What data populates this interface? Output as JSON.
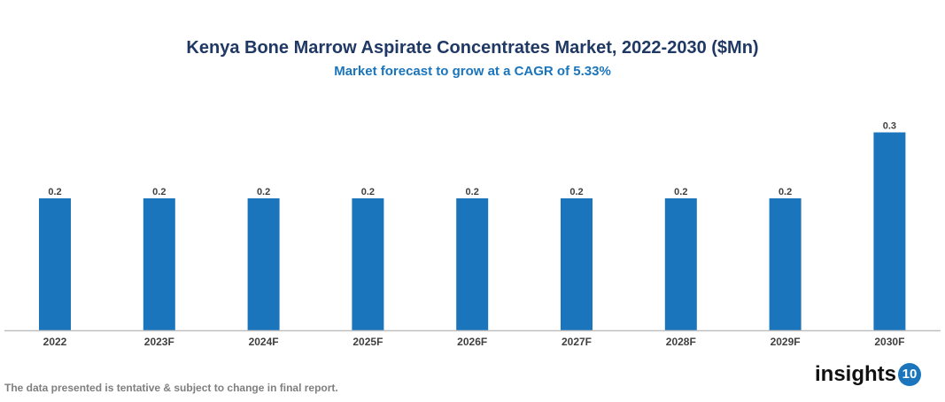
{
  "chart_data": {
    "type": "bar",
    "title": "Kenya Bone Marrow Aspirate Concentrates Market, 2022-2030 ($Mn)",
    "subtitle": "Market forecast to grow at a CAGR of 5.33%",
    "categories": [
      "2022",
      "2023F",
      "2024F",
      "2025F",
      "2026F",
      "2027F",
      "2028F",
      "2029F",
      "2030F"
    ],
    "values": [
      0.2,
      0.2,
      0.2,
      0.2,
      0.2,
      0.2,
      0.2,
      0.2,
      0.3
    ],
    "xlabel": "",
    "ylabel": "",
    "ylim": [
      0,
      0.35
    ],
    "grid": false,
    "bar_color": "#1a75bc"
  },
  "footnote": "The data presented is tentative & subject to change in final report.",
  "logo": {
    "text": "insights",
    "badge": "10"
  }
}
